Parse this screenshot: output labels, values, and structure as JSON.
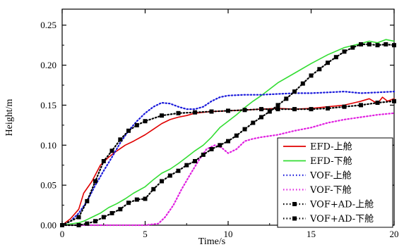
{
  "chart_data": {
    "type": "line",
    "xlabel": "Time/s",
    "ylabel": "Height/m",
    "xlim": [
      0,
      20
    ],
    "ylim": [
      0,
      0.27
    ],
    "x_ticks": [
      "0",
      "5",
      "10",
      "15",
      "20"
    ],
    "y_ticks": [
      "0.00",
      "0.05",
      "0.10",
      "0.15",
      "0.20",
      "0.25"
    ],
    "grid": false,
    "legend_position": "bottom-right",
    "series": [
      {
        "name": "EFD-上舱",
        "color": "#e00000",
        "style": "solid",
        "x": [
          0,
          0.5,
          1,
          1.3,
          1.8,
          2.3,
          2.8,
          3.3,
          3.8,
          4.3,
          5,
          5.5,
          6,
          6.5,
          7,
          7.5,
          8,
          9,
          10,
          11,
          12,
          13,
          14,
          15,
          16,
          17,
          18,
          18.5,
          19,
          19.3,
          19.6,
          20
        ],
        "y": [
          0,
          0.008,
          0.02,
          0.04,
          0.055,
          0.075,
          0.085,
          0.093,
          0.1,
          0.105,
          0.113,
          0.12,
          0.127,
          0.132,
          0.135,
          0.137,
          0.14,
          0.142,
          0.143,
          0.144,
          0.145,
          0.146,
          0.145,
          0.146,
          0.148,
          0.15,
          0.155,
          0.158,
          0.152,
          0.16,
          0.155,
          0.158
        ]
      },
      {
        "name": "EFD-下舱",
        "color": "#33dd33",
        "style": "solid",
        "x": [
          0,
          1,
          1.3,
          1.8,
          2.3,
          2.8,
          3.3,
          3.8,
          4.3,
          5,
          5.5,
          6,
          6.5,
          7,
          7.5,
          8,
          8.5,
          9,
          9.5,
          10,
          10.5,
          11,
          11.5,
          12,
          13,
          14,
          15,
          16,
          17,
          18,
          18.5,
          19,
          19.5,
          20
        ],
        "y": [
          0,
          0.003,
          0.005,
          0.01,
          0.015,
          0.022,
          0.027,
          0.033,
          0.04,
          0.048,
          0.057,
          0.065,
          0.07,
          0.077,
          0.085,
          0.093,
          0.1,
          0.11,
          0.122,
          0.13,
          0.138,
          0.147,
          0.155,
          0.162,
          0.178,
          0.19,
          0.202,
          0.213,
          0.222,
          0.227,
          0.23,
          0.228,
          0.232,
          0.23
        ]
      },
      {
        "name": "VOF-上舱",
        "color": "#1a1adb",
        "style": "dotted",
        "x": [
          0,
          0.5,
          1,
          1.5,
          2,
          2.5,
          3,
          3.5,
          4,
          4.5,
          5,
          5.5,
          6,
          6.5,
          7,
          7.5,
          8,
          8.5,
          9,
          9.5,
          10,
          11,
          12,
          13,
          14,
          15,
          16,
          17,
          18,
          19,
          20
        ],
        "y": [
          0,
          0.005,
          0.015,
          0.03,
          0.05,
          0.068,
          0.085,
          0.103,
          0.118,
          0.13,
          0.14,
          0.148,
          0.153,
          0.152,
          0.148,
          0.145,
          0.145,
          0.148,
          0.155,
          0.16,
          0.162,
          0.163,
          0.163,
          0.164,
          0.165,
          0.165,
          0.166,
          0.167,
          0.165,
          0.166,
          0.167
        ]
      },
      {
        "name": "VOF-下舱",
        "color": "#e020e0",
        "style": "dotted",
        "x": [
          0,
          1,
          2,
          3,
          4,
          5,
          5.8,
          6.2,
          6.7,
          7.2,
          7.7,
          8.2,
          8.7,
          9.2,
          9.6,
          10,
          10.5,
          11,
          11.5,
          12,
          13,
          14,
          15,
          16,
          17,
          18,
          19,
          20
        ],
        "y": [
          0,
          0,
          0,
          0,
          0,
          0,
          0.002,
          0.01,
          0.025,
          0.045,
          0.063,
          0.08,
          0.095,
          0.1,
          0.097,
          0.09,
          0.095,
          0.105,
          0.108,
          0.11,
          0.113,
          0.118,
          0.122,
          0.128,
          0.132,
          0.135,
          0.138,
          0.14
        ]
      },
      {
        "name": "VOF+AD-上舱",
        "color": "#000000",
        "style": "dotted-square",
        "x": [
          0,
          1,
          1.5,
          2,
          2.5,
          3,
          3.5,
          4,
          4.5,
          5,
          6,
          7,
          8,
          9,
          10,
          11,
          12,
          13,
          14,
          15,
          16,
          17,
          18,
          19,
          20
        ],
        "y": [
          0,
          0.01,
          0.03,
          0.055,
          0.08,
          0.093,
          0.107,
          0.118,
          0.125,
          0.13,
          0.137,
          0.14,
          0.141,
          0.142,
          0.143,
          0.144,
          0.145,
          0.145,
          0.145,
          0.145,
          0.146,
          0.148,
          0.15,
          0.153,
          0.155
        ]
      },
      {
        "name": "VOF+AD-下舱",
        "color": "#000000",
        "style": "dotted-square",
        "x": [
          0,
          1,
          1.5,
          2,
          2.5,
          3,
          3.5,
          4,
          4.5,
          5,
          5.5,
          6,
          6.5,
          7,
          7.5,
          8,
          8.5,
          9,
          9.5,
          10,
          10.5,
          11,
          11.5,
          12,
          12.5,
          13,
          13.5,
          14,
          14.5,
          15,
          15.5,
          16,
          16.5,
          17,
          17.5,
          18,
          18.5,
          19,
          19.5,
          20
        ],
        "y": [
          0,
          0,
          0.002,
          0.005,
          0.01,
          0.015,
          0.02,
          0.028,
          0.032,
          0.033,
          0.045,
          0.055,
          0.062,
          0.068,
          0.075,
          0.08,
          0.088,
          0.095,
          0.1,
          0.105,
          0.112,
          0.12,
          0.128,
          0.135,
          0.142,
          0.15,
          0.158,
          0.167,
          0.177,
          0.187,
          0.195,
          0.203,
          0.21,
          0.217,
          0.222,
          0.226,
          0.226,
          0.225,
          0.226,
          0.225
        ]
      }
    ]
  }
}
